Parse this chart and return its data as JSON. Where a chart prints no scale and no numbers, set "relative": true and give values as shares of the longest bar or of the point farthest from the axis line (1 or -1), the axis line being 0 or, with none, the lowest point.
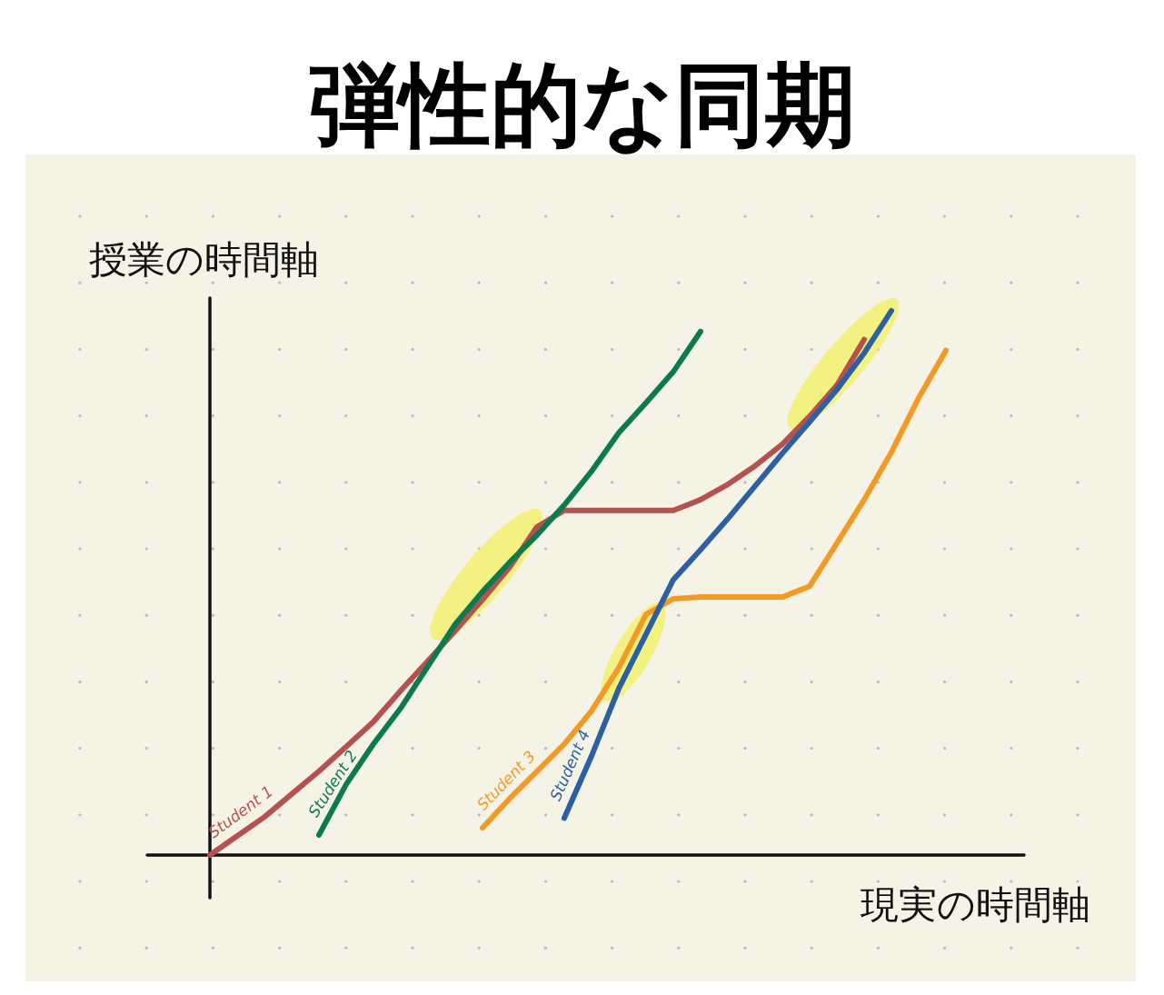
{
  "chart_data": {
    "type": "line",
    "title": "弾性的な同期",
    "xlabel": "現実の時間軸",
    "ylabel": "授業の時間軸",
    "relative": true,
    "marker": "none",
    "line_style": "solid",
    "categories": [
      null,
      null,
      null,
      null,
      null,
      null,
      null,
      null,
      null,
      null,
      null,
      null,
      null,
      null,
      null,
      null,
      null,
      null,
      null,
      null,
      null,
      null,
      null,
      null,
      null,
      null,
      null,
      null,
      null
    ],
    "series": [
      {
        "name": "Student 1",
        "color": "#b5514e",
        "values": [
          0,
          0.035,
          0.07,
          0.112,
          0.154,
          0.199,
          0.245,
          0.302,
          0.357,
          0.412,
          0.469,
          0.529,
          0.603,
          0.633,
          0.633,
          0.633,
          0.633,
          0.633,
          0.653,
          0.681,
          0.715,
          0.755,
          0.806,
          0.863,
          0.947,
          null,
          null,
          null,
          null
        ]
      },
      {
        "name": "Student 2",
        "color": "#0b7a4f",
        "values": [
          null,
          null,
          null,
          null,
          0.037,
          0.13,
          0.204,
          0.27,
          0.347,
          0.424,
          0.484,
          0.538,
          0.588,
          0.643,
          0.705,
          0.776,
          0.831,
          0.888,
          0.962,
          null,
          null,
          null,
          null,
          null,
          null,
          null,
          null,
          null,
          null
        ]
      },
      {
        "name": "Student 3",
        "color": "#f39a26",
        "values": [
          null,
          null,
          null,
          null,
          null,
          null,
          null,
          null,
          null,
          null,
          0.05,
          0.104,
          0.154,
          0.204,
          0.265,
          0.344,
          0.442,
          0.471,
          0.474,
          0.474,
          0.474,
          0.474,
          0.494,
          0.573,
          0.653,
          0.74,
          0.84,
          0.927,
          null
        ]
      },
      {
        "name": "Student 4",
        "color": "#2d5fa3",
        "values": [
          null,
          null,
          null,
          null,
          null,
          null,
          null,
          null,
          null,
          null,
          null,
          null,
          null,
          0.068,
          0.182,
          0.306,
          0.406,
          0.506,
          0.561,
          0.618,
          0.678,
          0.738,
          0.796,
          0.855,
          0.922,
          1.0,
          null,
          null,
          null
        ]
      }
    ]
  }
}
